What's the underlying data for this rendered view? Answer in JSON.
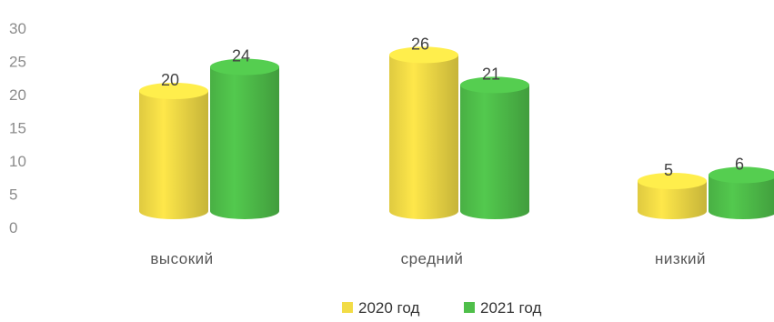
{
  "chart_data": {
    "type": "bar",
    "categories": [
      "высокий",
      "средний",
      "низкий"
    ],
    "series": [
      {
        "name": "2020 год",
        "values": [
          20,
          26,
          5
        ],
        "color": "#f2dc46"
      },
      {
        "name": "2021 год",
        "values": [
          24,
          21,
          6
        ],
        "color": "#4fbf4a"
      }
    ],
    "yticks": [
      "0",
      "5",
      "10",
      "15",
      "20",
      "25",
      "30"
    ],
    "ylim": [
      0,
      30
    ],
    "grid": false,
    "legend_position": "bottom",
    "style": "3d-cylinder"
  }
}
